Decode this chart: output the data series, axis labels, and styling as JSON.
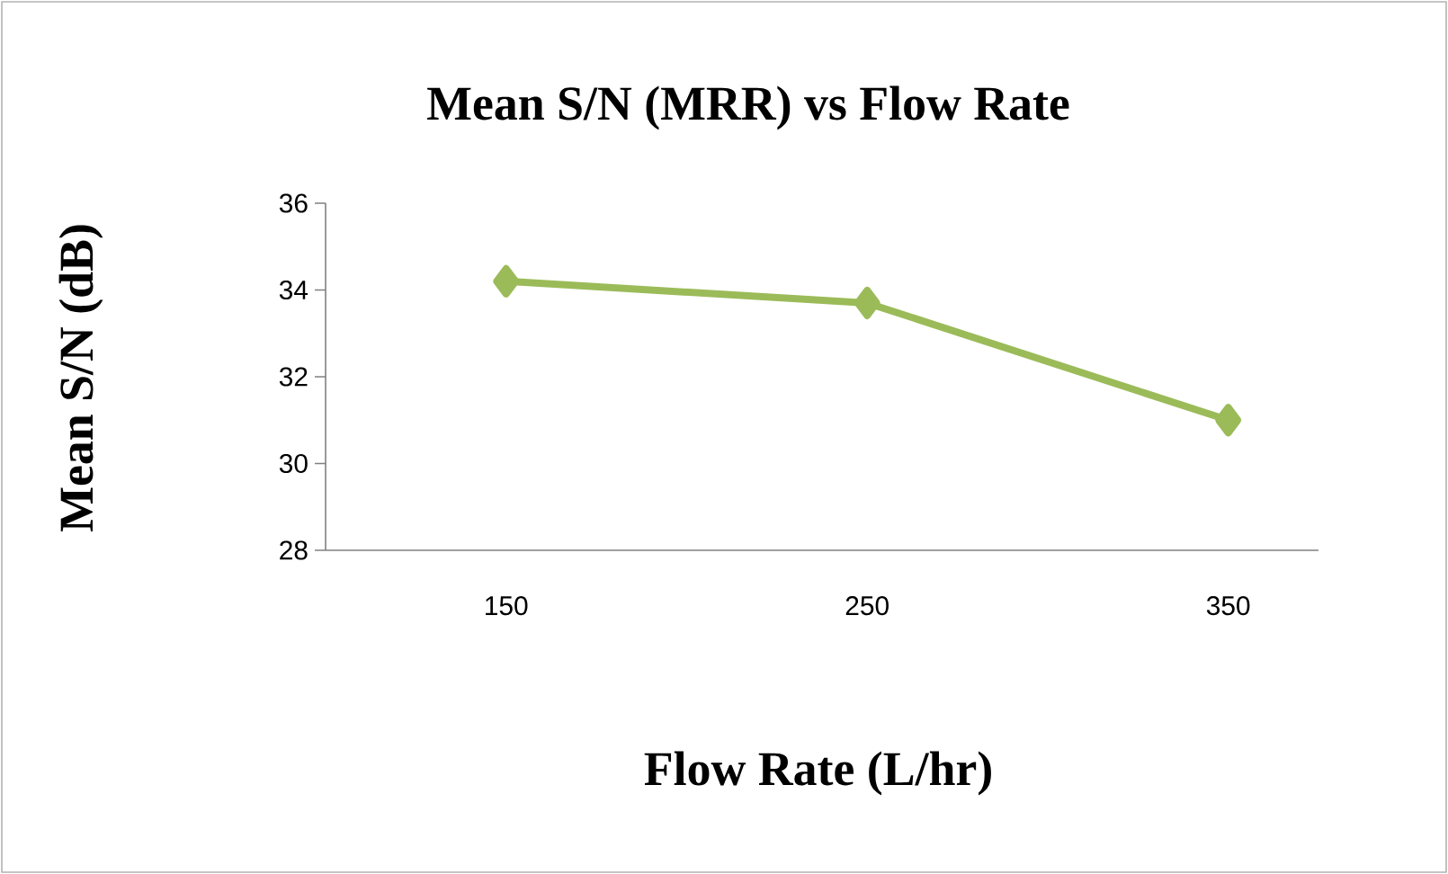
{
  "chart_data": {
    "type": "line",
    "title": "Mean S/N (MRR) vs Flow Rate",
    "xlabel": "Flow Rate (L/hr)",
    "ylabel": "Mean S/N (dB)",
    "categories": [
      "150",
      "250",
      "350"
    ],
    "series": [
      {
        "color": "#9bbb59",
        "values": [
          34.2,
          33.7,
          31.0
        ]
      }
    ],
    "ylim": [
      28,
      36
    ],
    "yticks": [
      28,
      30,
      32,
      34,
      36
    ],
    "marker": "diamond",
    "grid": false
  }
}
